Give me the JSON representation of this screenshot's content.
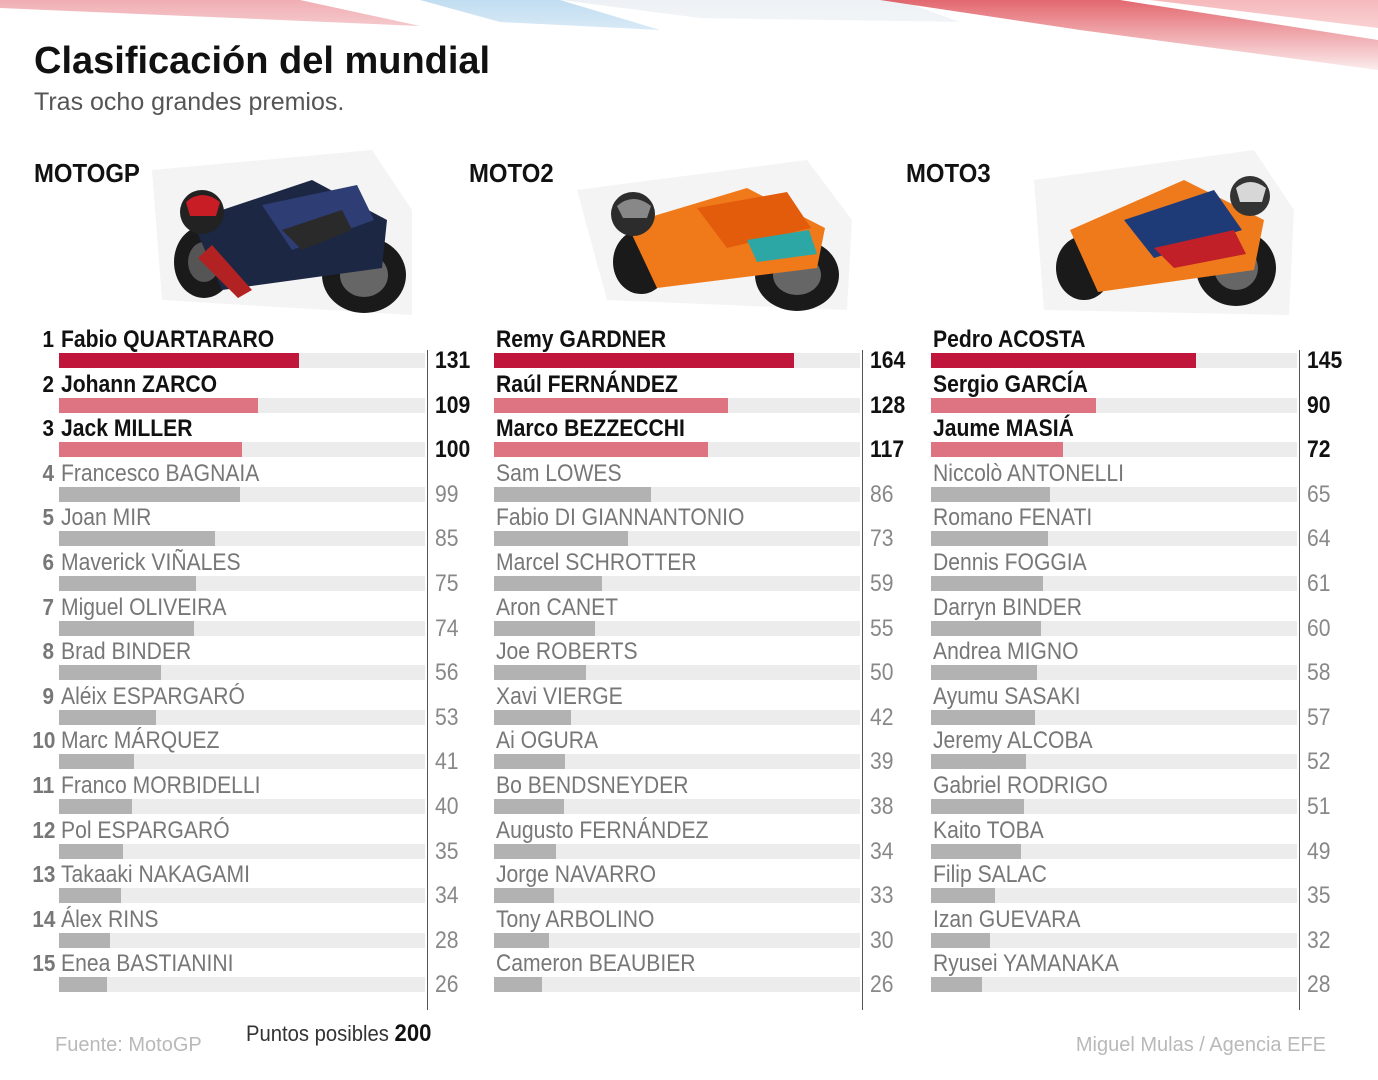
{
  "header": {
    "title": "Clasificación del mundial",
    "subtitle": "Tras ocho grandes premios."
  },
  "footer": {
    "source": "Fuente: MotoGP",
    "max_points_label": "Puntos posibles",
    "max_points_value": "200",
    "credit": "Miguel Mulas / Agencia EFE"
  },
  "colors": {
    "leader": "#c0163b",
    "podium": "#de7481",
    "rest": "#b2b2b2",
    "track": "#ececec"
  },
  "chart_data": [
    {
      "type": "bar",
      "orientation": "horizontal",
      "title": "MOTOGP",
      "xlim": [
        0,
        200
      ],
      "categories": [
        "Fabio QUARTARARO",
        "Johann ZARCO",
        "Jack MILLER",
        "Francesco BAGNAIA",
        "Joan MIR",
        "Maverick VIÑALES",
        "Miguel OLIVEIRA",
        "Brad BINDER",
        "Aléix ESPARGARÓ",
        "Marc MÁRQUEZ",
        "Franco MORBIDELLI",
        "Pol ESPARGARÓ",
        "Takaaki NAKAGAMI",
        "Álex RINS",
        "Enea BASTIANINI"
      ],
      "ranks": [
        "1",
        "2",
        "3",
        "4",
        "5",
        "6",
        "7",
        "8",
        "9",
        "10",
        "11",
        "12",
        "13",
        "14",
        "15"
      ],
      "values": [
        131,
        109,
        100,
        99,
        85,
        75,
        74,
        56,
        53,
        41,
        40,
        35,
        34,
        28,
        26
      ]
    },
    {
      "type": "bar",
      "orientation": "horizontal",
      "title": "MOTO2",
      "xlim": [
        0,
        200
      ],
      "categories": [
        "Remy GARDNER",
        "Raúl FERNÁNDEZ",
        "Marco BEZZECCHI",
        "Sam LOWES",
        "Fabio DI GIANNANTONIO",
        "Marcel SCHROTTER",
        "Aron CANET",
        "Joe ROBERTS",
        "Xavi VIERGE",
        "Ai OGURA",
        "Bo BENDSNEYDER",
        "Augusto FERNÁNDEZ",
        "Jorge NAVARRO",
        "Tony ARBOLINO",
        "Cameron BEAUBIER"
      ],
      "values": [
        164,
        128,
        117,
        86,
        73,
        59,
        55,
        50,
        42,
        39,
        38,
        34,
        33,
        30,
        26
      ]
    },
    {
      "type": "bar",
      "orientation": "horizontal",
      "title": "MOTO3",
      "xlim": [
        0,
        200
      ],
      "categories": [
        "Pedro ACOSTA",
        "Sergio GARCÍA",
        "Jaume MASIÁ",
        "Niccolò ANTONELLI",
        "Romano FENATI",
        "Dennis FOGGIA",
        "Darryn BINDER",
        "Andrea MIGNO",
        "Ayumu SASAKI",
        "Jeremy ALCOBA",
        "Gabriel RODRIGO",
        "Kaito TOBA",
        "Filip SALAC",
        "Izan GUEVARA",
        "Ryusei YAMANAKA"
      ],
      "values": [
        145,
        90,
        72,
        65,
        64,
        61,
        60,
        58,
        57,
        52,
        51,
        49,
        35,
        32,
        28
      ]
    }
  ]
}
